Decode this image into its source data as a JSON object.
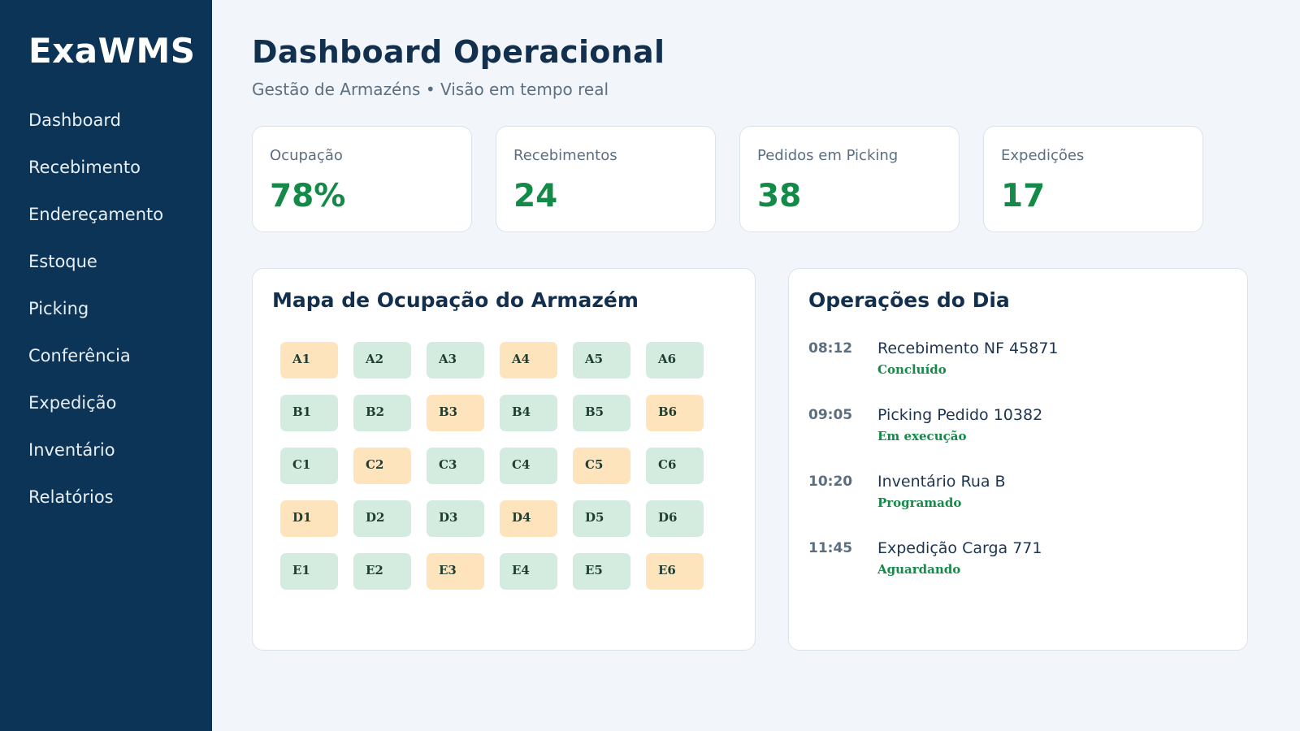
{
  "sidebar": {
    "brand": "ExaWMS",
    "items": [
      {
        "label": "Dashboard"
      },
      {
        "label": "Recebimento"
      },
      {
        "label": "Endereçamento"
      },
      {
        "label": "Estoque"
      },
      {
        "label": "Picking"
      },
      {
        "label": "Conferência"
      },
      {
        "label": "Expedição"
      },
      {
        "label": "Inventário"
      },
      {
        "label": "Relatórios"
      }
    ]
  },
  "header": {
    "title": "Dashboard Operacional",
    "subtitle": "Gestão de Armazéns • Visão em tempo real"
  },
  "kpis": [
    {
      "label": "Ocupação",
      "value": "78%"
    },
    {
      "label": "Recebimentos",
      "value": "24"
    },
    {
      "label": "Pedidos em Picking",
      "value": "38"
    },
    {
      "label": "Expedições",
      "value": "17"
    }
  ],
  "map": {
    "title": "Mapa de Ocupação do Armazém",
    "legend_colors": {
      "free": "#d3ecdf",
      "busy": "#fde4bd"
    },
    "bays": [
      {
        "id": "A1",
        "state": "busy"
      },
      {
        "id": "A2",
        "state": "free"
      },
      {
        "id": "A3",
        "state": "free"
      },
      {
        "id": "A4",
        "state": "busy"
      },
      {
        "id": "A5",
        "state": "free"
      },
      {
        "id": "A6",
        "state": "free"
      },
      {
        "id": "B1",
        "state": "free"
      },
      {
        "id": "B2",
        "state": "free"
      },
      {
        "id": "B3",
        "state": "busy"
      },
      {
        "id": "B4",
        "state": "free"
      },
      {
        "id": "B5",
        "state": "free"
      },
      {
        "id": "B6",
        "state": "busy"
      },
      {
        "id": "C1",
        "state": "free"
      },
      {
        "id": "C2",
        "state": "busy"
      },
      {
        "id": "C3",
        "state": "free"
      },
      {
        "id": "C4",
        "state": "free"
      },
      {
        "id": "C5",
        "state": "busy"
      },
      {
        "id": "C6",
        "state": "free"
      },
      {
        "id": "D1",
        "state": "busy"
      },
      {
        "id": "D2",
        "state": "free"
      },
      {
        "id": "D3",
        "state": "free"
      },
      {
        "id": "D4",
        "state": "busy"
      },
      {
        "id": "D5",
        "state": "free"
      },
      {
        "id": "D6",
        "state": "free"
      },
      {
        "id": "E1",
        "state": "free"
      },
      {
        "id": "E2",
        "state": "free"
      },
      {
        "id": "E3",
        "state": "busy"
      },
      {
        "id": "E4",
        "state": "free"
      },
      {
        "id": "E5",
        "state": "free"
      },
      {
        "id": "E6",
        "state": "busy"
      }
    ]
  },
  "operations": {
    "title": "Operações do Dia",
    "items": [
      {
        "time": "08:12",
        "title": "Recebimento NF 45871",
        "status": "Concluído"
      },
      {
        "time": "09:05",
        "title": "Picking Pedido 10382",
        "status": "Em execução"
      },
      {
        "time": "10:20",
        "title": "Inventário Rua B",
        "status": "Programado"
      },
      {
        "time": "11:45",
        "title": "Expedição Carga 771",
        "status": "Aguardando"
      }
    ]
  },
  "colors": {
    "sidebar": "#0c3456",
    "accent_green": "#148a48",
    "heading": "#12304d",
    "background": "#f2f6fa"
  }
}
